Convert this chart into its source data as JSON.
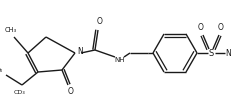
{
  "bg_color": "#ffffff",
  "line_color": "#1a1a1a",
  "lw": 1.0,
  "figsize": [
    2.32,
    1.05
  ],
  "dpi": 100,
  "xlim": [
    0,
    232
  ],
  "ylim": [
    0,
    105
  ]
}
